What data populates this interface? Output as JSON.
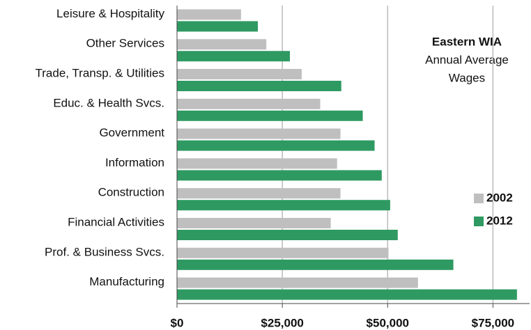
{
  "chart_data": {
    "type": "barh",
    "title": "Eastern WIA",
    "subtitle_lines": [
      "Annual Average",
      "Wages"
    ],
    "categories": [
      "Leisure & Hospitality",
      "Other Services",
      "Trade, Transp. & Utilities",
      "Educ. & Health Svcs.",
      "Government",
      "Information",
      "Construction",
      "Financial Activities",
      "Prof. & Business Svcs.",
      "Manufacturing"
    ],
    "series": [
      {
        "name": "2002",
        "color": "#bfbfbf",
        "values": [
          15200,
          21200,
          29600,
          34000,
          38800,
          38000,
          38800,
          36500,
          50200,
          57200
        ]
      },
      {
        "name": "2012",
        "color": "#2e9a62",
        "values": [
          19200,
          26800,
          39000,
          44100,
          46900,
          48600,
          50600,
          52400,
          65600,
          80700
        ]
      }
    ],
    "xlim": [
      0,
      83700
    ],
    "xticks": [
      {
        "value": 0,
        "label": "$0"
      },
      {
        "value": 25000,
        "label": "$25,000"
      },
      {
        "value": 50000,
        "label": "$50,000"
      },
      {
        "value": 75000,
        "label": "$75,000"
      }
    ],
    "grid": true,
    "legend": "right"
  }
}
